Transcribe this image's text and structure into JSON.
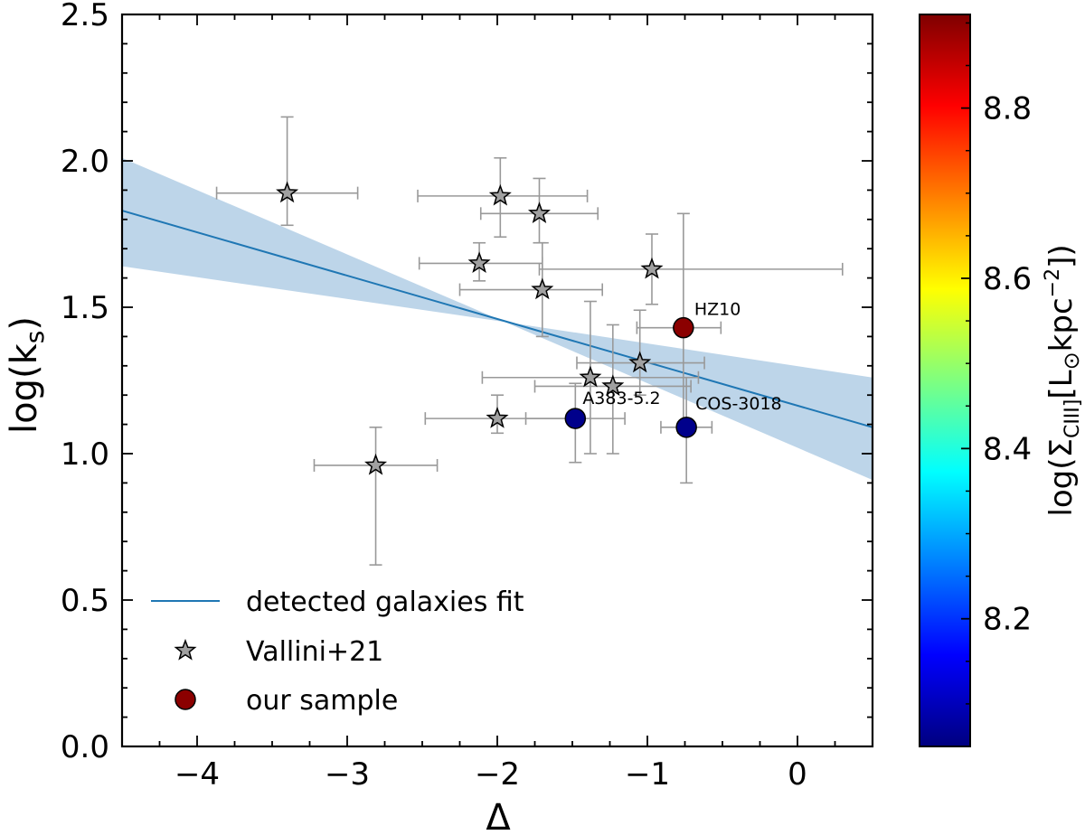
{
  "chart_data": {
    "type": "scatter",
    "title": "",
    "xlabel": "Δ",
    "ylabel_main": "log(k",
    "ylabel_sub": "s",
    "ylabel_close": ")",
    "xlim": [
      -4.5,
      0.5
    ],
    "ylim": [
      0.0,
      2.5
    ],
    "xticks": [
      -4,
      -3,
      -2,
      -1,
      0
    ],
    "xtick_labels": [
      "−4",
      "−3",
      "−2",
      "−1",
      "0"
    ],
    "yticks": [
      0.0,
      0.5,
      1.0,
      1.5,
      2.0,
      2.5
    ],
    "ytick_labels": [
      "0.0",
      "0.5",
      "1.0",
      "1.5",
      "2.0",
      "2.5"
    ],
    "fit": {
      "name": "detected galaxies fit",
      "color": "#1f77b4",
      "band_color": "#b9d3e8",
      "line": [
        [
          -4.5,
          1.83
        ],
        [
          0.5,
          1.09
        ]
      ],
      "band_upper": [
        [
          -4.5,
          2.01
        ],
        [
          -1.95,
          1.45
        ],
        [
          0.5,
          1.26
        ]
      ],
      "band_lower": [
        [
          -4.5,
          1.64
        ],
        [
          -1.95,
          1.45
        ],
        [
          0.5,
          0.91
        ]
      ]
    },
    "series": [
      {
        "name": "Vallini+21",
        "marker": "star",
        "color": "#a0a0a0",
        "errorbar_color": "#999999",
        "points": [
          {
            "x": -3.4,
            "y": 1.89,
            "xerr": [
              0.47,
              0.47
            ],
            "yerr": [
              0.11,
              0.26
            ]
          },
          {
            "x": -1.98,
            "y": 1.88,
            "xerr": [
              0.55,
              0.58
            ],
            "yerr": [
              0.14,
              0.13
            ]
          },
          {
            "x": -1.72,
            "y": 1.82,
            "xerr": [
              0.39,
              0.39
            ],
            "yerr": [
              0.1,
              0.12
            ]
          },
          {
            "x": -2.12,
            "y": 1.65,
            "xerr": [
              0.4,
              0.42
            ],
            "yerr": [
              0.06,
              0.07
            ]
          },
          {
            "x": -0.97,
            "y": 1.63,
            "xerr": [
              0.75,
              1.27
            ],
            "yerr": [
              0.12,
              0.12
            ]
          },
          {
            "x": -1.7,
            "y": 1.56,
            "xerr": [
              0.55,
              0.4
            ],
            "yerr": [
              0.16,
              0.16
            ]
          },
          {
            "x": -1.05,
            "y": 1.31,
            "xerr": [
              0.42,
              0.43
            ],
            "yerr": [
              0.11,
              0.18
            ]
          },
          {
            "x": -1.38,
            "y": 1.26,
            "xerr": [
              0.72,
              0.72
            ],
            "yerr": [
              0.26,
              0.26
            ]
          },
          {
            "x": -1.23,
            "y": 1.23,
            "xerr": [
              0.52,
              0.52
            ],
            "yerr": [
              0.23,
              0.21
            ]
          },
          {
            "x": -2.0,
            "y": 1.12,
            "xerr": [
              0.48,
              0.48
            ],
            "yerr": [
              0.05,
              0.08
            ]
          },
          {
            "x": -2.81,
            "y": 0.96,
            "xerr": [
              0.41,
              0.41
            ],
            "yerr": [
              0.34,
              0.13
            ]
          }
        ]
      },
      {
        "name": "our sample",
        "marker": "circle",
        "points": [
          {
            "label": "HZ10",
            "x": -0.76,
            "y": 1.43,
            "xerr": [
              0.31,
              0.25
            ],
            "yerr": [
              0.36,
              0.39
            ],
            "cval": 8.9,
            "color": "#8b0000"
          },
          {
            "label": "A383-5.2",
            "x": -1.48,
            "y": 1.12,
            "xerr": [
              0.33,
              0.33
            ],
            "yerr": [
              0.15,
              0.12
            ],
            "cval": 8.05,
            "color": "#00008b"
          },
          {
            "label": "COS-3018",
            "x": -0.74,
            "y": 1.09,
            "xerr": [
              0.17,
              0.17
            ],
            "yerr": [
              0.19,
              0.17
            ],
            "cval": 8.05,
            "color": "#00008b"
          }
        ]
      }
    ],
    "legend": {
      "position": "lower-left",
      "entries": [
        "detected galaxies fit",
        "Vallini+21",
        "our sample"
      ]
    },
    "colorbar": {
      "colormap": "jet",
      "range": [
        8.05,
        8.91
      ],
      "ticks": [
        8.2,
        8.4,
        8.6,
        8.8
      ],
      "tick_labels": [
        "8.2",
        "8.4",
        "8.6",
        "8.8"
      ],
      "label": "log(Σ_CIII][L⊙kpc⁻²])",
      "label_parts": {
        "open": "log(Σ",
        "sub": "CIII]",
        "mid": "[L",
        "sun": "⊙",
        "unit": "kpc",
        "sup": "−2",
        "close": "])"
      }
    }
  }
}
